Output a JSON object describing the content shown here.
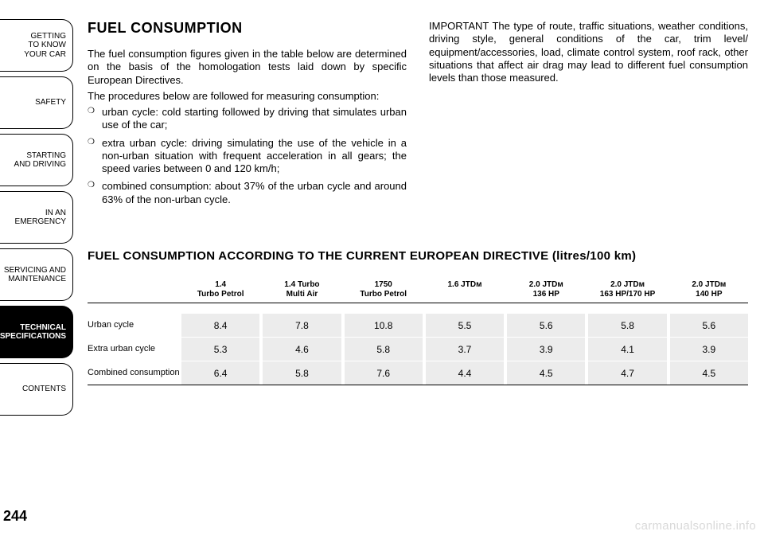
{
  "sidebar": {
    "tabs": [
      {
        "label": "GETTING\nTO KNOW\nYOUR CAR",
        "active": false
      },
      {
        "label": "SAFETY",
        "active": false
      },
      {
        "label": "STARTING\nAND DRIVING",
        "active": false
      },
      {
        "label": "IN AN\nEMERGENCY",
        "active": false
      },
      {
        "label": "SERVICING AND\nMAINTENANCE",
        "active": false
      },
      {
        "label": "TECHNICAL\nSPECIFICATIONS",
        "active": true
      },
      {
        "label": "CONTENTS",
        "active": false
      }
    ]
  },
  "page_number": "244",
  "watermark": "carmanualsonline.info",
  "content": {
    "title": "FUEL CONSUMPTION",
    "intro_p1": "The fuel consumption figures given in the table below are determined on the basis of the homologation tests laid down by specific European Directives.",
    "intro_p2": "The procedures below are followed for measuring consumption:",
    "bullets": [
      "urban cycle: cold starting followed by driving that simulates urban use of the car;",
      "extra urban cycle: driving simulating the use of the vehicle in a non-urban situation with frequent acceleration in all gears; the speed varies between 0 and 120 km/h;",
      "combined consumption: about 37% of the urban cycle and around 63% of the non-urban cycle."
    ],
    "important": "IMPORTANT The type of route, traffic situations, weather conditions, driving style, general conditions of the car, trim level/ equipment/accessories, load, climate control system, roof rack, other situations that affect air drag may lead to different fuel consumption levels than those measured."
  },
  "table": {
    "title": "FUEL CONSUMPTION ACCORDING TO THE CURRENT EUROPEAN DIRECTIVE (litres/100 km)",
    "columns": [
      {
        "l1": "1.4",
        "l2": "Turbo Petrol"
      },
      {
        "l1": "1.4 Turbo",
        "l2": "Multi Air"
      },
      {
        "l1": "1750",
        "l2": "Turbo Petrol"
      },
      {
        "l1": "1.6 JTDᴍ",
        "l2": ""
      },
      {
        "l1": "2.0 JTDᴍ",
        "l2": "136 HP"
      },
      {
        "l1": "2.0 JTDᴍ",
        "l2": "163 HP/170 HP"
      },
      {
        "l1": "2.0 JTDᴍ",
        "l2": "140 HP"
      }
    ],
    "rows": [
      {
        "label": "Urban cycle",
        "values": [
          "8.4",
          "7.8",
          "10.8",
          "5.5",
          "5.6",
          "5.8",
          "5.6"
        ]
      },
      {
        "label": "Extra urban cycle",
        "values": [
          "5.3",
          "4.6",
          "5.8",
          "3.7",
          "3.9",
          "4.1",
          "3.9"
        ]
      },
      {
        "label": "Combined consumption",
        "values": [
          "6.4",
          "5.8",
          "7.6",
          "4.4",
          "4.5",
          "4.7",
          "4.5"
        ]
      }
    ],
    "cell_bg": "#ececec",
    "border_color": "#000000"
  }
}
